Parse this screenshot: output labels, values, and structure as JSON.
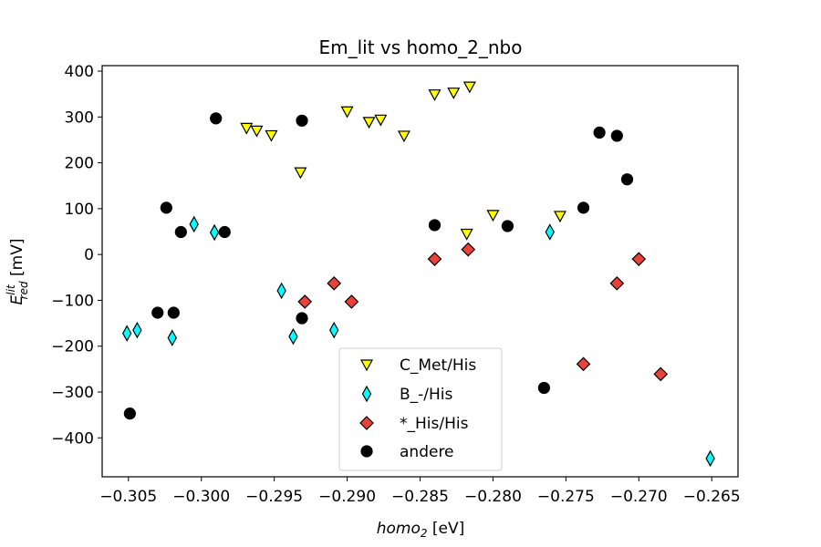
{
  "chart_data": {
    "type": "scatter",
    "title": "Em_lit vs homo_2_nbo",
    "xlabel": {
      "main": "homo",
      "sub": "2",
      "unit": " [eV]"
    },
    "ylabel": {
      "main": "E",
      "sub": "red",
      "sup": "lit",
      "unit": "  [mV]"
    },
    "xlim": [
      -0.3068,
      -0.2632
    ],
    "ylim": [
      -485,
      412
    ],
    "xticks": [
      -0.305,
      -0.3,
      -0.295,
      -0.29,
      -0.285,
      -0.28,
      -0.275,
      -0.27,
      -0.265
    ],
    "xtick_labels": [
      "−0.305",
      "−0.300",
      "−0.295",
      "−0.290",
      "−0.285",
      "−0.280",
      "−0.275",
      "−0.270",
      "−0.265"
    ],
    "yticks": [
      400,
      300,
      200,
      100,
      0,
      -100,
      -200,
      -300,
      -400
    ],
    "ytick_labels": [
      "400",
      "300",
      "200",
      "100",
      "0",
      "−100",
      "−200",
      "−300",
      "−400"
    ],
    "grid": false,
    "legend_position": "bottom-center",
    "series": [
      {
        "name": "C_Met/His",
        "marker": "triangle-down",
        "color": "#ffff00",
        "points": [
          [
            -0.2969,
            276
          ],
          [
            -0.2962,
            270
          ],
          [
            -0.2952,
            260
          ],
          [
            -0.2932,
            179
          ],
          [
            -0.29,
            312
          ],
          [
            -0.2885,
            289
          ],
          [
            -0.2877,
            294
          ],
          [
            -0.2861,
            259
          ],
          [
            -0.284,
            349
          ],
          [
            -0.2827,
            353
          ],
          [
            -0.2816,
            366
          ],
          [
            -0.2818,
            45
          ],
          [
            -0.28,
            86
          ],
          [
            -0.2754,
            84
          ]
        ]
      },
      {
        "name": "B_-/His",
        "marker": "thin-diamond",
        "color": "#00ffff",
        "points": [
          [
            -0.3051,
            -172
          ],
          [
            -0.3044,
            -165
          ],
          [
            -0.302,
            -182
          ],
          [
            -0.3005,
            66
          ],
          [
            -0.2991,
            48
          ],
          [
            -0.2945,
            -79
          ],
          [
            -0.2937,
            -179
          ],
          [
            -0.2909,
            -165
          ],
          [
            -0.2761,
            49
          ],
          [
            -0.2651,
            -445
          ]
        ]
      },
      {
        "name": "*_His/His",
        "marker": "diamond",
        "color": "#e8423a",
        "points": [
          [
            -0.2929,
            -103
          ],
          [
            -0.2909,
            -63
          ],
          [
            -0.2897,
            -103
          ],
          [
            -0.284,
            -10
          ],
          [
            -0.2817,
            11
          ],
          [
            -0.2738,
            -239
          ],
          [
            -0.2715,
            -63
          ],
          [
            -0.27,
            -10
          ],
          [
            -0.2685,
            -261
          ]
        ]
      },
      {
        "name": "andere",
        "marker": "circle",
        "color": "#000000",
        "points": [
          [
            -0.3049,
            -347
          ],
          [
            -0.303,
            -127
          ],
          [
            -0.3024,
            102
          ],
          [
            -0.3019,
            -127
          ],
          [
            -0.3014,
            49
          ],
          [
            -0.299,
            297
          ],
          [
            -0.2984,
            49
          ],
          [
            -0.2931,
            292
          ],
          [
            -0.2931,
            -139
          ],
          [
            -0.284,
            64
          ],
          [
            -0.279,
            62
          ],
          [
            -0.2765,
            -291
          ],
          [
            -0.2738,
            102
          ],
          [
            -0.2727,
            266
          ],
          [
            -0.2715,
            259
          ],
          [
            -0.2708,
            164
          ]
        ]
      }
    ]
  }
}
